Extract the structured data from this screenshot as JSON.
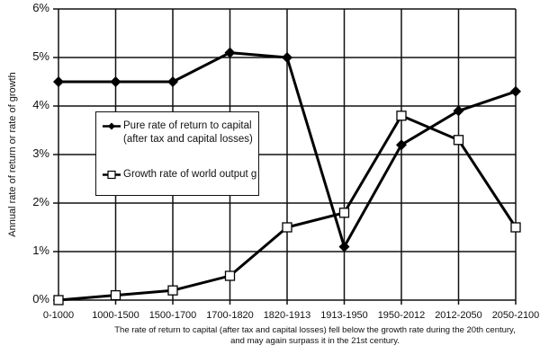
{
  "chart_data": {
    "type": "line",
    "title": "",
    "xlabel": "",
    "ylabel": "Annual rate of return or rate of growth",
    "categories": [
      "0-1000",
      "1000-1500",
      "1500-1700",
      "1700-1820",
      "1820-1913",
      "1913-1950",
      "1950-2012",
      "2012-2050",
      "2050-2100"
    ],
    "series": [
      {
        "name": "Pure rate of return to capital\n(after tax and capital losses)",
        "marker": "filled-diamond",
        "values": [
          4.5,
          4.5,
          4.5,
          5.1,
          5.0,
          1.1,
          3.2,
          3.9,
          4.3
        ]
      },
      {
        "name": "Growth rate of world output g",
        "marker": "open-square",
        "values": [
          0.0,
          0.1,
          0.2,
          0.5,
          1.5,
          1.8,
          3.8,
          3.3,
          1.5
        ]
      }
    ],
    "ylim": [
      0,
      6
    ],
    "yticks": [
      "0%",
      "1%",
      "2%",
      "3%",
      "4%",
      "5%",
      "6%"
    ],
    "grid": true,
    "legend_position": "inside-left-middle",
    "caption": [
      "The rate of return to capital (after tax and capital losses) fell below the growth rate during the 20th century,",
      "and may again surpass it in the 21st century."
    ]
  },
  "colors": {
    "line": "#000000",
    "grid": "#111111",
    "background": "#ffffff"
  }
}
